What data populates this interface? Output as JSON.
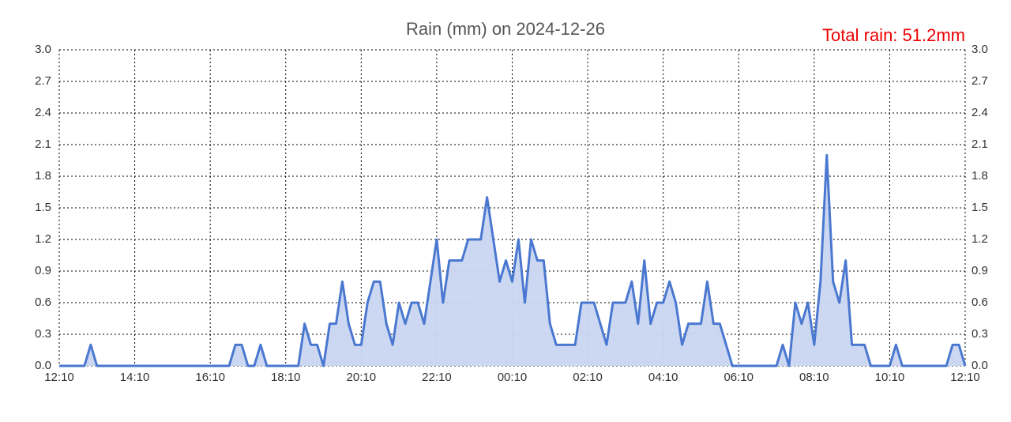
{
  "chart_data": {
    "type": "area",
    "title": "Rain (mm) on 2024-12-26",
    "annotation": "Total rain: 51.2mm",
    "categories": [
      "12:10",
      null,
      null,
      null,
      null,
      null,
      null,
      null,
      null,
      null,
      null,
      null,
      "14:10",
      null,
      null,
      null,
      null,
      null,
      null,
      null,
      null,
      null,
      null,
      null,
      "16:10",
      null,
      null,
      null,
      null,
      null,
      null,
      null,
      null,
      null,
      null,
      null,
      "18:10",
      null,
      null,
      null,
      null,
      null,
      null,
      null,
      null,
      null,
      null,
      null,
      "20:10",
      null,
      null,
      null,
      null,
      null,
      null,
      null,
      null,
      null,
      null,
      null,
      "22:10",
      null,
      null,
      null,
      null,
      null,
      null,
      null,
      null,
      null,
      null,
      null,
      "00:10",
      null,
      null,
      null,
      null,
      null,
      null,
      null,
      null,
      null,
      null,
      null,
      "02:10",
      null,
      null,
      null,
      null,
      null,
      null,
      null,
      null,
      null,
      null,
      null,
      "04:10",
      null,
      null,
      null,
      null,
      null,
      null,
      null,
      null,
      null,
      null,
      null,
      "06:10",
      null,
      null,
      null,
      null,
      null,
      null,
      null,
      null,
      null,
      null,
      null,
      "08:10",
      null,
      null,
      null,
      null,
      null,
      null,
      null,
      null,
      null,
      null,
      null,
      "10:10",
      null,
      null,
      null,
      null,
      null,
      null,
      null,
      null,
      null,
      null,
      null,
      "12:10"
    ],
    "values": [
      0,
      0,
      0,
      0,
      0,
      0.2,
      0,
      0,
      0,
      0,
      0,
      0,
      0,
      0,
      0,
      0,
      0,
      0,
      0,
      0,
      0,
      0,
      0,
      0,
      0,
      0,
      0,
      0,
      0.2,
      0.2,
      0,
      0,
      0.2,
      0,
      0,
      0,
      0,
      0,
      0,
      0.4,
      0.2,
      0.2,
      0,
      0.4,
      0.4,
      0.8,
      0.4,
      0.2,
      0.2,
      0.6,
      0.8,
      0.8,
      0.4,
      0.2,
      0.6,
      0.4,
      0.6,
      0.6,
      0.4,
      0.8,
      1.2,
      0.6,
      1.0,
      1.0,
      1.0,
      1.2,
      1.2,
      1.2,
      1.6,
      1.2,
      0.8,
      1.0,
      0.8,
      1.2,
      0.6,
      1.2,
      1.0,
      1.0,
      0.4,
      0.2,
      0.2,
      0.2,
      0.2,
      0.6,
      0.6,
      0.6,
      0.4,
      0.2,
      0.6,
      0.6,
      0.6,
      0.8,
      0.4,
      1.0,
      0.4,
      0.6,
      0.6,
      0.8,
      0.6,
      0.2,
      0.4,
      0.4,
      0.4,
      0.8,
      0.4,
      0.4,
      0.2,
      0,
      0,
      0,
      0,
      0,
      0,
      0,
      0,
      0.2,
      0,
      0.6,
      0.4,
      0.6,
      0.2,
      0.8,
      2.0,
      0.8,
      0.6,
      1.0,
      0.2,
      0.2,
      0.2,
      0,
      0,
      0,
      0,
      0.2,
      0,
      0,
      0,
      0,
      0,
      0,
      0,
      0,
      0.2,
      0.2,
      0
    ],
    "color": "#4a78d0",
    "fill": "#c9d6f1",
    "ylim": [
      0,
      3
    ],
    "yticks": [
      {
        "value": 0,
        "label": "0.0"
      },
      0.3,
      0.6,
      0.9,
      1.2,
      1.5,
      1.8,
      2.1,
      2.4,
      2.7,
      {
        "value": 3,
        "label": "3.0"
      }
    ],
    "grid": true
  }
}
